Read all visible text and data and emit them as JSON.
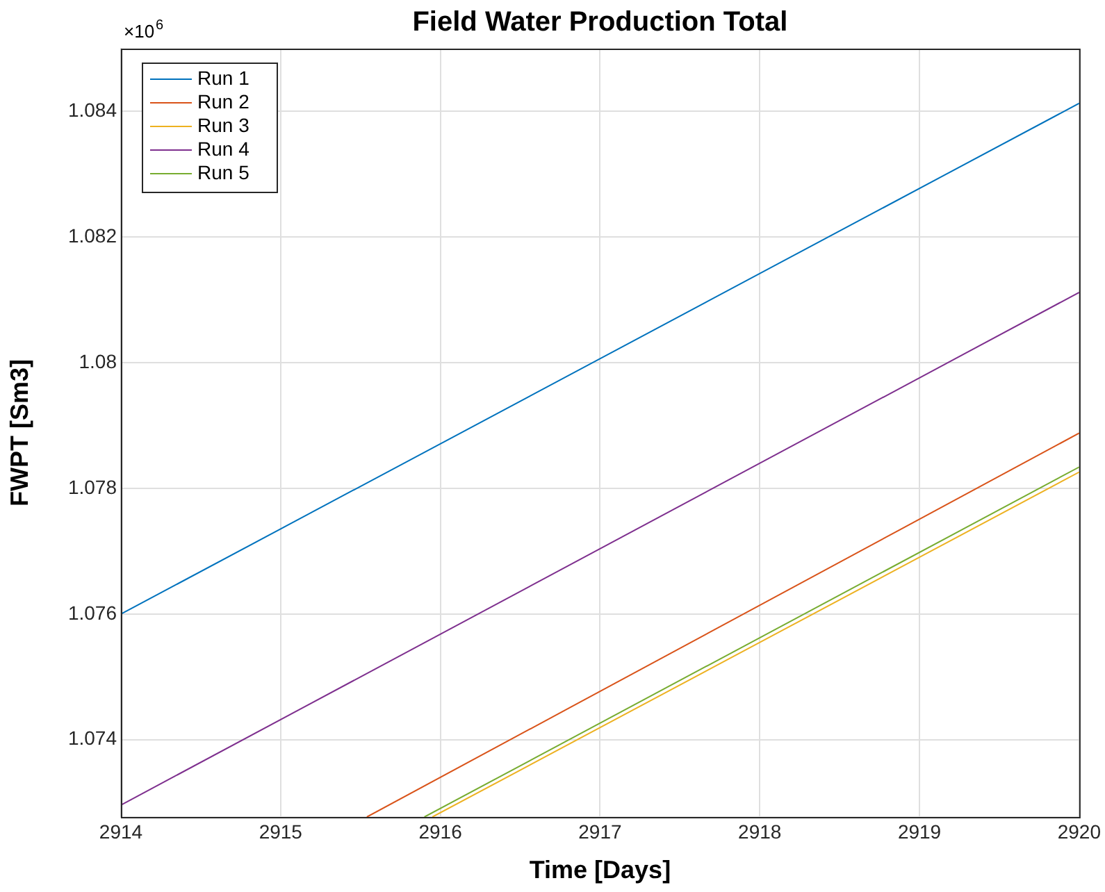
{
  "chart_data": {
    "type": "line",
    "title": "Field Water Production Total",
    "xlabel": "Time [Days]",
    "ylabel": "FWPT [Sm3]",
    "annotations": [
      "×10$^{6}$"
    ],
    "xlim": [
      2914,
      2920
    ],
    "xticks": [
      2914,
      2915,
      2916,
      2917,
      2918,
      2919,
      2920
    ],
    "ylim": [
      1.07277,
      1.085
    ],
    "yticks": [
      1.074,
      1.076,
      1.078,
      1.08,
      1.082,
      1.084
    ],
    "grid": true,
    "legend": "top left",
    "marker": "none",
    "line_style": "solid",
    "series": [
      {
        "name": "Run 1",
        "color": "#0072bd",
        "x": [
          2914,
          2920
        ],
        "values": [
          1.076,
          1.08413
        ]
      },
      {
        "name": "Run 2",
        "color": "#d95319",
        "x": [
          2915.54,
          2920
        ],
        "values": [
          1.07277,
          1.07888
        ]
      },
      {
        "name": "Run 3",
        "color": "#edb120",
        "x": [
          2915.95,
          2920
        ],
        "values": [
          1.07277,
          1.07826
        ]
      },
      {
        "name": "Run 4",
        "color": "#7e2f8e",
        "x": [
          2914,
          2920
        ],
        "values": [
          1.07296,
          1.08112
        ]
      },
      {
        "name": "Run 5",
        "color": "#77ac30",
        "x": [
          2915.9,
          2920
        ],
        "values": [
          1.07277,
          1.07834
        ]
      }
    ]
  }
}
